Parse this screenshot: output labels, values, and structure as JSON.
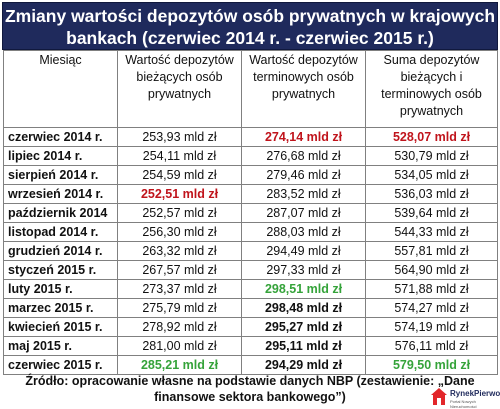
{
  "title": "Zmiany wartości depozytów osób prywatnych w krajowych bankach (czerwiec 2014 r. - czerwiec 2015 r.)",
  "headers": {
    "month": "Miesiąc",
    "current": "Wartość depozytów bieżących osób prywatnych",
    "term": "Wartość depozytów terminowych osób prywatnych",
    "sum": "Suma depozytów bieżących i terminowych osób prywatnych"
  },
  "rows": [
    {
      "month": "czerwiec 2014 r.",
      "current": "253,93 mld zł",
      "term": "274,14 mld zł",
      "sum": "528,07 mld zł",
      "current_style": "",
      "term_style": "red",
      "sum_style": "red"
    },
    {
      "month": "lipiec 2014 r.",
      "current": "254,11 mld zł",
      "term": "276,68 mld zł",
      "sum": "530,79 mld zł",
      "current_style": "",
      "term_style": "",
      "sum_style": ""
    },
    {
      "month": "sierpień 2014 r.",
      "current": "254,59 mld zł",
      "term": "279,46 mld zł",
      "sum": "534,05 mld zł",
      "current_style": "",
      "term_style": "",
      "sum_style": ""
    },
    {
      "month": "wrzesień 2014 r.",
      "current": "252,51 mld zł",
      "term": "283,52 mld zł",
      "sum": "536,03 mld zł",
      "current_style": "red",
      "term_style": "",
      "sum_style": ""
    },
    {
      "month": "październik 2014",
      "current": "252,57 mld zł",
      "term": "287,07 mld zł",
      "sum": "539,64 mld zł",
      "current_style": "",
      "term_style": "",
      "sum_style": ""
    },
    {
      "month": "listopad 2014 r.",
      "current": "256,30 mld zł",
      "term": "288,03 mld zł",
      "sum": "544,33 mld zł",
      "current_style": "",
      "term_style": "",
      "sum_style": ""
    },
    {
      "month": "grudzień 2014 r.",
      "current": "263,32 mld zł",
      "term": "294,49 mld zł",
      "sum": "557,81 mld zł",
      "current_style": "",
      "term_style": "",
      "sum_style": ""
    },
    {
      "month": "styczeń 2015 r.",
      "current": "267,57 mld zł",
      "term": "297,33 mld zł",
      "sum": "564,90 mld zł",
      "current_style": "",
      "term_style": "",
      "sum_style": ""
    },
    {
      "month": "luty 2015 r.",
      "current": "273,37 mld zł",
      "term": "298,51 mld zł",
      "sum": "571,88 mld zł",
      "current_style": "",
      "term_style": "green",
      "sum_style": ""
    },
    {
      "month": "marzec 2015 r.",
      "current": "275,79 mld zł",
      "term": "298,48 mld zł",
      "sum": "574,27 mld zł",
      "current_style": "",
      "term_style": "bold",
      "sum_style": ""
    },
    {
      "month": "kwiecień 2015 r.",
      "current": "278,92 mld zł",
      "term": "295,27 mld zł",
      "sum": "574,19 mld zł",
      "current_style": "",
      "term_style": "bold",
      "sum_style": ""
    },
    {
      "month": "maj 2015 r.",
      "current": "281,00 mld zł",
      "term": "295,11 mld zł",
      "sum": "576,11 mld zł",
      "current_style": "",
      "term_style": "bold",
      "sum_style": ""
    },
    {
      "month": "czerwiec 2015 r.",
      "current": "285,21 mld zł",
      "term": "294,29 mld zł",
      "sum": "579,50 mld zł",
      "current_style": "green",
      "term_style": "bold",
      "sum_style": "green"
    }
  ],
  "source": "Źródło: opracowanie własne na podstawie danych NBP (zestawienie: „Dane finansowe sektora bankowego”)",
  "logo": {
    "name": "RynekPierwotny",
    "tagline": "Portal Nowych Nieruchomości",
    "icon": "house-logo-icon"
  },
  "colors": {
    "title_bg": "#1f2a5c",
    "highlight_red": "#c0141c",
    "highlight_green": "#35a33a"
  }
}
